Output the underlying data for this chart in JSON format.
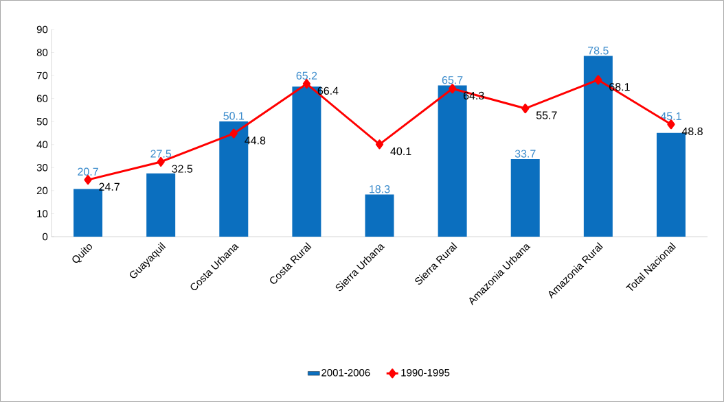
{
  "chart_data": {
    "type": "bar",
    "categories": [
      "Quito",
      "Guayaquil",
      "Costa Urbana",
      "Costa Rural",
      "Sierra Urbana",
      "Sierra Rural",
      "Amazonia Urbana",
      "Amazonia Rural",
      "Total Nacional"
    ],
    "series": [
      {
        "name": "2001-2006",
        "color": "#0b6fbf",
        "values": [
          20.7,
          27.5,
          50.1,
          65.2,
          18.3,
          65.7,
          33.7,
          78.5,
          45.1
        ]
      },
      {
        "name": "1990-1995",
        "type": "line",
        "color": "#ff0000",
        "marker": "diamond",
        "values": [
          24.7,
          32.5,
          44.8,
          66.4,
          40.1,
          64.3,
          55.7,
          68.1,
          48.8
        ]
      }
    ],
    "ylim": [
      0,
      90
    ],
    "yticks": [
      0,
      10,
      20,
      30,
      40,
      50,
      60,
      70,
      80,
      90
    ],
    "data_labels": true,
    "legend": "bottom",
    "grid": false
  }
}
